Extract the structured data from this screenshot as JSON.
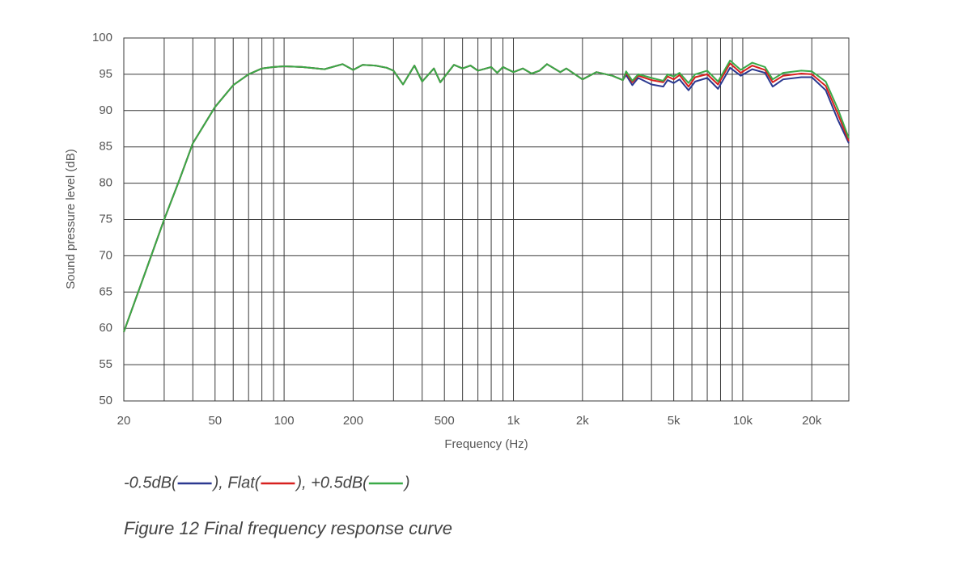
{
  "chart_data": {
    "type": "line",
    "x_label": "Frequency (Hz)",
    "y_label": "Sound pressure level (dB)",
    "caption": "Figure 12 Final frequency response curve",
    "xscale": "log",
    "xlim": [
      20,
      29000
    ],
    "ylim": [
      50,
      100
    ],
    "xticks": [
      20,
      50,
      100,
      200,
      500,
      {
        "value": 1000,
        "label": "1k"
      },
      {
        "value": 2000,
        "label": "2k"
      },
      {
        "value": 5000,
        "label": "5k"
      },
      {
        "value": 10000,
        "label": "10k"
      },
      {
        "value": 20000,
        "label": "20k"
      }
    ],
    "xminor": [
      30,
      40,
      60,
      70,
      80,
      90,
      300,
      400,
      600,
      700,
      800,
      900,
      3000,
      4000,
      6000,
      7000,
      8000,
      9000
    ],
    "yticks": [
      50,
      55,
      60,
      65,
      70,
      75,
      80,
      85,
      90,
      95,
      100
    ],
    "grid": true,
    "legend_format": {
      "open": "(",
      "close": ")",
      "separator": ", "
    },
    "x": [
      20,
      25,
      30,
      35,
      40,
      50,
      60,
      70,
      80,
      90,
      100,
      120,
      150,
      180,
      200,
      220,
      250,
      280,
      300,
      330,
      370,
      400,
      450,
      480,
      550,
      600,
      650,
      700,
      800,
      850,
      900,
      1000,
      1100,
      1200,
      1300,
      1400,
      1600,
      1700,
      2000,
      2300,
      2700,
      3000,
      3100,
      3300,
      3500,
      4000,
      4500,
      4700,
      5000,
      5300,
      5800,
      6200,
      7000,
      7800,
      8800,
      9800,
      11000,
      12500,
      13500,
      15000,
      18000,
      20000,
      23000,
      26000,
      29000
    ],
    "series": [
      {
        "name": "-0.5dB",
        "color": "#2b3990",
        "values": [
          59.5,
          68,
          75,
          80.5,
          85.5,
          90.5,
          93.5,
          95,
          95.8,
          96,
          96.1,
          96,
          95.7,
          96.4,
          95.6,
          96.3,
          96.2,
          95.9,
          95.5,
          93.6,
          96.2,
          94,
          95.8,
          93.9,
          96.3,
          95.8,
          96.2,
          95.5,
          96,
          95.2,
          96,
          95.3,
          95.8,
          95.1,
          95.5,
          96.4,
          95.3,
          95.8,
          94.3,
          95.3,
          94.8,
          94.2,
          94.9,
          93.5,
          94.5,
          93.6,
          93.3,
          94.2,
          93.8,
          94.3,
          92.8,
          94,
          94.5,
          93,
          95.9,
          94.8,
          95.7,
          95.2,
          93.3,
          94.3,
          94.6,
          94.6,
          92.8,
          88.7,
          85.5
        ]
      },
      {
        "name": "Flat",
        "color": "#d7201f",
        "values": [
          59.5,
          68,
          75,
          80.5,
          85.5,
          90.5,
          93.5,
          95,
          95.8,
          96,
          96.1,
          96,
          95.7,
          96.4,
          95.6,
          96.3,
          96.2,
          95.9,
          95.5,
          93.6,
          96.2,
          94,
          95.8,
          93.9,
          96.3,
          95.8,
          96.2,
          95.5,
          96,
          95.2,
          96,
          95.3,
          95.8,
          95.1,
          95.5,
          96.4,
          95.3,
          95.8,
          94.3,
          95.3,
          94.8,
          94.2,
          95.2,
          93.9,
          94.8,
          94.2,
          93.9,
          94.7,
          94.3,
          94.9,
          93.3,
          94.6,
          95,
          93.6,
          96.5,
          95.2,
          96.2,
          95.6,
          93.9,
          94.8,
          95.1,
          95,
          93.4,
          89.5,
          85.8
        ]
      },
      {
        "name": "+0.5dB",
        "color": "#3aaa48",
        "values": [
          59.5,
          68,
          75,
          80.5,
          85.5,
          90.5,
          93.5,
          95,
          95.8,
          96,
          96.1,
          96,
          95.7,
          96.4,
          95.6,
          96.3,
          96.2,
          95.9,
          95.5,
          93.6,
          96.2,
          94,
          95.8,
          93.9,
          96.3,
          95.8,
          96.2,
          95.5,
          96,
          95.2,
          96,
          95.3,
          95.8,
          95.1,
          95.5,
          96.4,
          95.3,
          95.8,
          94.3,
          95.3,
          94.8,
          94.2,
          95.4,
          94.1,
          95,
          94.5,
          94.1,
          95,
          94.7,
          95.2,
          93.8,
          95,
          95.5,
          94,
          96.9,
          95.6,
          96.6,
          96,
          94.3,
          95.2,
          95.5,
          95.4,
          94,
          90.2,
          86.2
        ]
      }
    ]
  }
}
